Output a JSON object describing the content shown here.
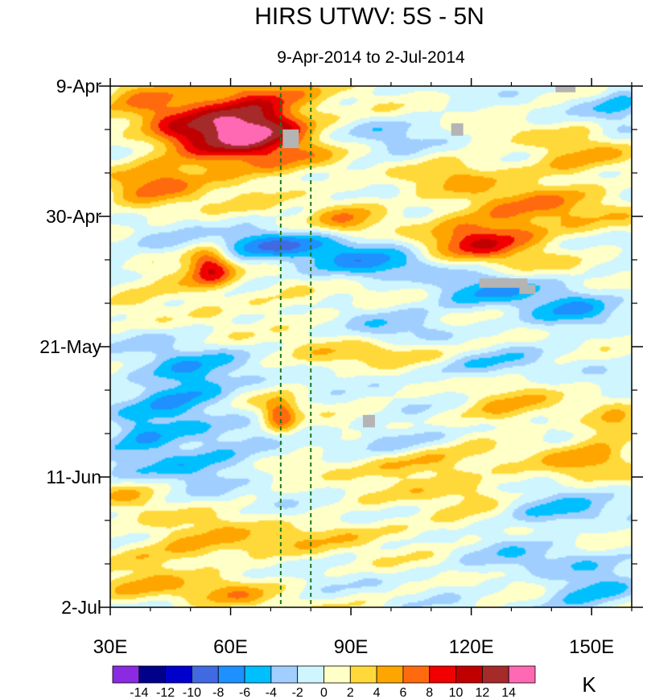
{
  "chart_data": {
    "type": "heatmap",
    "title": "HIRS UTWV: 5S - 5N",
    "subtitle": "9-Apr-2014 to 2-Jul-2014",
    "x_axis": {
      "label": "",
      "range": [
        30,
        160
      ],
      "ticks": [
        {
          "value": 30,
          "label": "30E"
        },
        {
          "value": 60,
          "label": "60E"
        },
        {
          "value": 90,
          "label": "90E"
        },
        {
          "value": 120,
          "label": "120E"
        },
        {
          "value": 150,
          "label": "150E"
        }
      ],
      "minor_tick_step": 10
    },
    "y_axis": {
      "label": "",
      "orientation": "time increases downward",
      "range_days": [
        0,
        84
      ],
      "ticks": [
        {
          "day": 0,
          "label": "9-Apr"
        },
        {
          "day": 21,
          "label": "30-Apr"
        },
        {
          "day": 42,
          "label": "21-May"
        },
        {
          "day": 63,
          "label": "11-Jun"
        },
        {
          "day": 84,
          "label": "2-Jul"
        }
      ],
      "minor_tick_step_days": 7
    },
    "reference_lines": [
      {
        "x": 72.5,
        "style": "dashed",
        "color": "#1b7a1b"
      },
      {
        "x": 80,
        "style": "dashed",
        "color": "#1b7a1b"
      }
    ],
    "colorbar": {
      "units": "K",
      "levels": [
        -14,
        -12,
        -10,
        -8,
        -6,
        -4,
        -2,
        0,
        2,
        4,
        6,
        8,
        10,
        12,
        14
      ],
      "colors": [
        "#8a2be2",
        "#00008b",
        "#0000cd",
        "#4169e1",
        "#1e90ff",
        "#00bfff",
        "#a0cfff",
        "#cff5ff",
        "#ffffc8",
        "#ffd93a",
        "#ffa500",
        "#ff6a0f",
        "#f00000",
        "#c00000",
        "#a52a2a",
        "#ff69b4"
      ],
      "tick_labels": [
        "-14",
        "-12",
        "-10",
        "-8",
        "-6",
        "-4",
        "-2",
        "0",
        "2",
        "4",
        "6",
        "8",
        "10",
        "12",
        "14"
      ]
    },
    "missing_color": "#b4b4b4",
    "missing_regions": [
      {
        "lon": [
          141,
          146
        ],
        "day": [
          0,
          1
        ]
      },
      {
        "lon": [
          115,
          118
        ],
        "day": [
          6,
          8
        ]
      },
      {
        "lon": [
          122,
          134
        ],
        "day": [
          31,
          32.5
        ]
      },
      {
        "lon": [
          132,
          136
        ],
        "day": [
          32,
          33.5
        ]
      },
      {
        "lon": [
          93,
          96
        ],
        "day": [
          53,
          55
        ]
      },
      {
        "lon": [
          73,
          77
        ],
        "day": [
          7,
          10
        ]
      }
    ],
    "features": [
      {
        "lon": 62,
        "day": 7,
        "sx": 13,
        "sy": 5,
        "a": 13
      },
      {
        "lon": 68,
        "day": 5.5,
        "sx": 8,
        "sy": 3,
        "a": 3
      },
      {
        "lon": 46,
        "day": 6.5,
        "sx": 6,
        "sy": 2.5,
        "a": 3
      },
      {
        "lon": 38,
        "day": 1,
        "sx": 7,
        "sy": 2,
        "a": 5
      },
      {
        "lon": 40,
        "day": 16.5,
        "sx": 8,
        "sy": 3,
        "a": 5
      },
      {
        "lon": 55,
        "day": 29,
        "sx": 4,
        "sy": 3,
        "a": 9
      },
      {
        "lon": 44,
        "day": 32,
        "sx": 8,
        "sy": 2.5,
        "a": 3
      },
      {
        "lon": 123,
        "day": 25,
        "sx": 11,
        "sy": 3,
        "a": 9
      },
      {
        "lon": 140,
        "day": 20,
        "sx": 12,
        "sy": 2.5,
        "a": 4.5
      },
      {
        "lon": 145,
        "day": 12,
        "sx": 10,
        "sy": 3,
        "a": 4
      },
      {
        "lon": 118,
        "day": 15,
        "sx": 9,
        "sy": 3,
        "a": 3.5
      },
      {
        "lon": 89,
        "day": 21,
        "sx": 6,
        "sy": 2.5,
        "a": 4.5
      },
      {
        "lon": 100,
        "day": 43,
        "sx": 14,
        "sy": 1.5,
        "a": 4
      },
      {
        "lon": 75,
        "day": 36,
        "sx": 8,
        "sy": 2,
        "a": 2.5
      },
      {
        "lon": 72.5,
        "day": 53,
        "sx": 3,
        "sy": 2,
        "a": 8
      },
      {
        "lon": 128,
        "day": 52,
        "sx": 9,
        "sy": 2.5,
        "a": 4
      },
      {
        "lon": 107,
        "day": 61,
        "sx": 13,
        "sy": 2,
        "a": 5
      },
      {
        "lon": 150,
        "day": 60,
        "sx": 8,
        "sy": 2,
        "a": 5
      },
      {
        "lon": 155,
        "day": 55,
        "sx": 5,
        "sy": 2,
        "a": 4
      },
      {
        "lon": 120,
        "day": 66,
        "sx": 9,
        "sy": 2,
        "a": 3.5
      },
      {
        "lon": 52,
        "day": 74,
        "sx": 14,
        "sy": 2.5,
        "a": 4.5
      },
      {
        "lon": 37,
        "day": 66,
        "sx": 7,
        "sy": 2,
        "a": 3
      },
      {
        "lon": 38,
        "day": 81,
        "sx": 9,
        "sy": 2,
        "a": 4
      },
      {
        "lon": 60,
        "day": 82,
        "sx": 8,
        "sy": 1.5,
        "a": 4
      },
      {
        "lon": 95,
        "day": 72,
        "sx": 20,
        "sy": 2,
        "a": 2.5
      },
      {
        "lon": 68,
        "day": 25.5,
        "sx": 22,
        "sy": 1.6,
        "a": -6
      },
      {
        "lon": 95,
        "day": 28.5,
        "sx": 16,
        "sy": 1.8,
        "a": -5
      },
      {
        "lon": 48,
        "day": 48,
        "sx": 9,
        "sy": 4,
        "a": -6.5
      },
      {
        "lon": 50,
        "day": 60,
        "sx": 12,
        "sy": 3,
        "a": -5
      },
      {
        "lon": 37,
        "day": 56,
        "sx": 6,
        "sy": 2.5,
        "a": -4
      },
      {
        "lon": 125,
        "day": 33,
        "sx": 10,
        "sy": 2.5,
        "a": -5
      },
      {
        "lon": 145,
        "day": 36.5,
        "sx": 8,
        "sy": 2.5,
        "a": -4.5
      },
      {
        "lon": 139,
        "day": 68.5,
        "sx": 12,
        "sy": 1.8,
        "a": -4.5
      },
      {
        "lon": 104,
        "day": 57,
        "sx": 10,
        "sy": 2,
        "a": -3.5
      },
      {
        "lon": 150,
        "day": 82,
        "sx": 8,
        "sy": 2.5,
        "a": -5
      },
      {
        "lon": 120,
        "day": 45,
        "sx": 12,
        "sy": 2,
        "a": -3.5
      },
      {
        "lon": 157,
        "day": 3,
        "sx": 4,
        "sy": 3,
        "a": -4
      },
      {
        "lon": 97,
        "day": 8,
        "sx": 10,
        "sy": 2.5,
        "a": -2.5
      },
      {
        "lon": 133,
        "day": 76,
        "sx": 14,
        "sy": 2.5,
        "a": -2.5
      },
      {
        "lon": 100,
        "day": 38,
        "sx": 9,
        "sy": 2,
        "a": -3
      }
    ]
  }
}
